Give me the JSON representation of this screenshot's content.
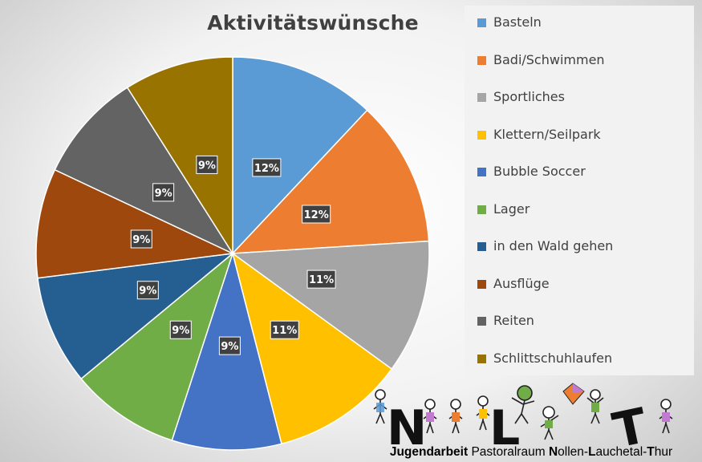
{
  "chart_data": {
    "type": "pie",
    "title": "Aktivitätswünsche",
    "categories": [
      "Basteln",
      "Badi/Schwimmen",
      "Sportliches",
      "Klettern/Seilpark",
      "Bubble Soccer",
      "Lager",
      "in den Wald gehen",
      "Ausflüge",
      "Reiten",
      "Schlittschuhlaufen"
    ],
    "values": [
      12,
      12,
      11,
      11,
      9,
      9,
      9,
      9,
      9,
      9
    ],
    "data_labels": [
      "12%",
      "12%",
      "11%",
      "11%",
      "9%",
      "9%",
      "9%",
      "9%",
      "9%",
      "9%"
    ],
    "colors": [
      "#5B9BD5",
      "#ED7D31",
      "#A5A5A5",
      "#FFC000",
      "#4472C4",
      "#70AD47",
      "#255E91",
      "#9E480E",
      "#636363",
      "#997300"
    ],
    "legend_position": "right"
  },
  "logo": {
    "letters": [
      "N",
      "L",
      "T"
    ],
    "caption_parts": [
      {
        "text": "J",
        "bold": true
      },
      {
        "text": "ugendarbeit",
        "bold": true
      },
      {
        "text": " Pastoralraum ",
        "bold": false
      },
      {
        "text": "N",
        "bold": true
      },
      {
        "text": "ollen-",
        "bold": false
      },
      {
        "text": "L",
        "bold": true
      },
      {
        "text": "auchetal-",
        "bold": false
      },
      {
        "text": "T",
        "bold": true
      },
      {
        "text": "hur",
        "bold": false
      }
    ]
  }
}
